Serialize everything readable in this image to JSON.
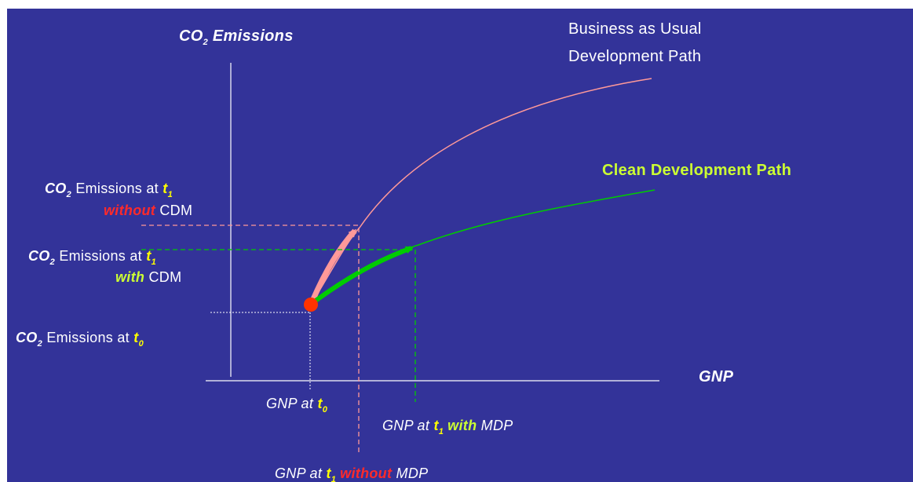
{
  "axes": {
    "y_title_co": "CO",
    "y_title_sub": "2",
    "y_title_rest": " Emissions",
    "x_title": "GNP"
  },
  "paths": {
    "bau_line1": "Business as Usual",
    "bau_line2": "Development Path",
    "clean": "Clean Development Path"
  },
  "labels": {
    "co": "CO",
    "two": "2",
    "emissions_at": " Emissions at ",
    "t": "t",
    "t_sub1": "1",
    "t_sub0": "0",
    "without": "without",
    "with": "with",
    "cdm": " CDM",
    "gnp_at": "GNP at ",
    "mdp": " MDP"
  },
  "colors": {
    "background": "#333399",
    "bau_path": "#ff9999",
    "clean_path": "#00cc00",
    "origin_dot": "#ff3300",
    "highlight_yellow": "#ffff00",
    "highlight_red": "#ff2a2a",
    "highlight_green": "#ccff33"
  }
}
